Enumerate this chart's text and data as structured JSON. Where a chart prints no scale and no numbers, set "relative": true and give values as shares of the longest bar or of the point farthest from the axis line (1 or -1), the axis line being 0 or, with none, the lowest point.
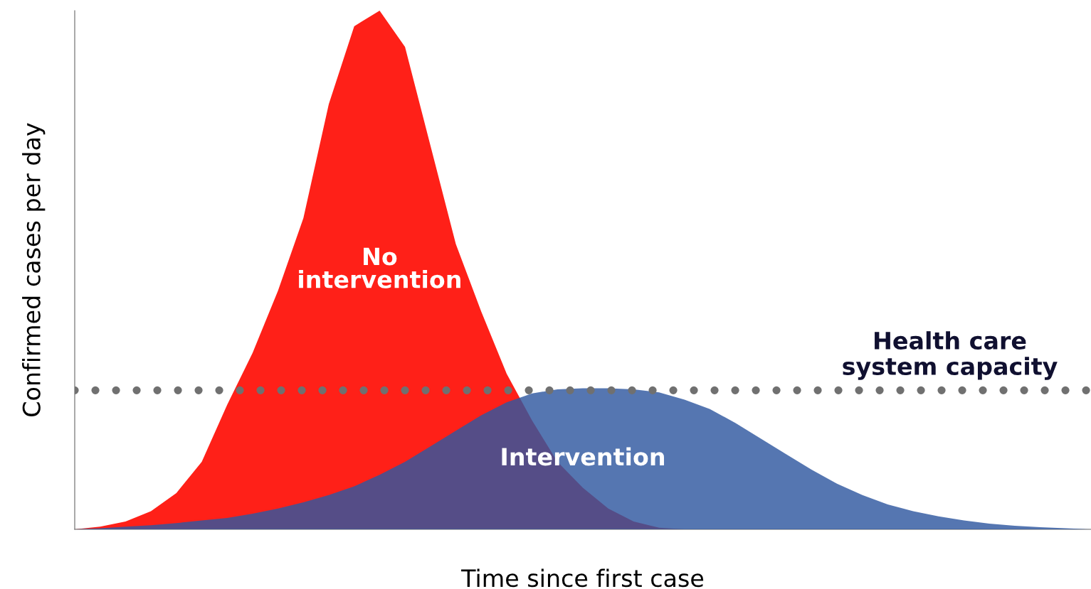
{
  "chart_data": {
    "type": "area",
    "relative": true,
    "xlabel": "Time since first case",
    "ylabel": "Confirmed cases per day",
    "categories": [
      null,
      null,
      null,
      null,
      null,
      null,
      null,
      null,
      null,
      null,
      null,
      null,
      null,
      null,
      null,
      null,
      null,
      null,
      null,
      null,
      null,
      null,
      null,
      null,
      null,
      null,
      null,
      null,
      null,
      null,
      null,
      null,
      null,
      null,
      null,
      null,
      null,
      null,
      null,
      null,
      null
    ],
    "series": [
      {
        "name": "No intervention",
        "color": "#ff2018",
        "values": [
          0,
          0.005,
          0.015,
          0.035,
          0.07,
          0.13,
          0.24,
          0.34,
          0.46,
          0.6,
          0.82,
          0.97,
          1.0,
          0.93,
          0.74,
          0.55,
          0.42,
          0.3,
          0.21,
          0.13,
          0.08,
          0.04,
          0.015,
          0.003,
          0,
          0,
          0,
          0,
          0,
          0,
          0,
          0,
          0,
          0,
          0,
          0,
          0,
          0,
          0,
          0,
          0
        ]
      },
      {
        "name": "Intervention",
        "color": "#3058a0",
        "values": [
          0,
          0.002,
          0.005,
          0.008,
          0.012,
          0.017,
          0.022,
          0.03,
          0.04,
          0.052,
          0.066,
          0.083,
          0.105,
          0.13,
          0.16,
          0.19,
          0.22,
          0.245,
          0.262,
          0.27,
          0.272,
          0.272,
          0.27,
          0.264,
          0.25,
          0.232,
          0.205,
          0.175,
          0.145,
          0.115,
          0.088,
          0.066,
          0.048,
          0.035,
          0.025,
          0.017,
          0.011,
          0.007,
          0.004,
          0.002,
          0
        ]
      }
    ],
    "ref_lines": [
      {
        "axis": "y",
        "value": 0.268,
        "label": "Health care system capacity",
        "color": "#707070",
        "line_style": "dotted"
      }
    ],
    "legend": false
  }
}
